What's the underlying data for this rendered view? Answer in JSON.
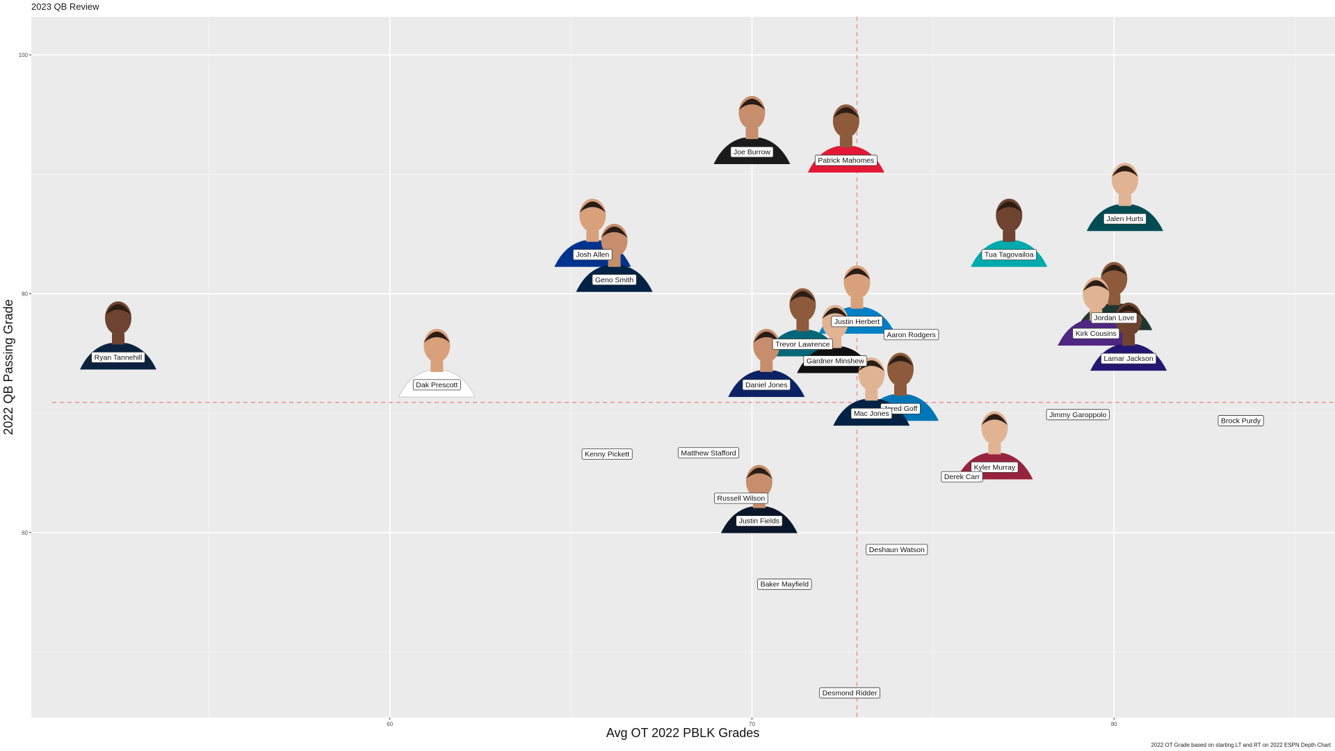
{
  "chart_data": {
    "type": "scatter",
    "title": "2023 QB Review",
    "xlabel": "Avg OT 2022 PBLK Grades",
    "ylabel": "2022 QB Passing Grade",
    "caption": "2022 OT Grade based on starting LT and RT on 2022 ESPN Depth Chart",
    "xlim": [
      50.1,
      86.1
    ],
    "ylim": [
      44.5,
      103.2
    ],
    "x_ticks": [
      60,
      70,
      80
    ],
    "y_ticks": [
      60,
      80,
      100
    ],
    "grid": true,
    "reference_lines": {
      "x_mean": 72.9,
      "y_mean": 70.9,
      "color": "#f08080",
      "style": "dashed"
    },
    "points": [
      {
        "name": "Joe Burrow",
        "x": 70.0,
        "y": 91.9,
        "headshot": true,
        "jersey": "#1b1b1b"
      },
      {
        "name": "Patrick Mahomes",
        "x": 72.6,
        "y": 91.2,
        "headshot": true,
        "jersey": "#e31837"
      },
      {
        "name": "Jalen Hurts",
        "x": 80.3,
        "y": 86.3,
        "headshot": true,
        "jersey": "#004c54"
      },
      {
        "name": "Tua Tagovailoa",
        "x": 77.1,
        "y": 83.3,
        "headshot": true,
        "jersey": "#00aaad"
      },
      {
        "name": "Josh Allen",
        "x": 65.6,
        "y": 83.3,
        "headshot": true,
        "jersey": "#00338d"
      },
      {
        "name": "Geno Smith",
        "x": 66.2,
        "y": 81.2,
        "headshot": true,
        "jersey": "#002244"
      },
      {
        "name": "Jordan Love",
        "x": 80.0,
        "y": 78.0,
        "headshot": true,
        "jersey": "#203731"
      },
      {
        "name": "Kirk Cousins",
        "x": 79.5,
        "y": 76.7,
        "headshot": true,
        "jersey": "#4f2683"
      },
      {
        "name": "Lamar Jackson",
        "x": 80.4,
        "y": 74.6,
        "headshot": true,
        "jersey": "#241773"
      },
      {
        "name": "Justin Herbert",
        "x": 72.9,
        "y": 77.7,
        "headshot": true,
        "jersey": "#0080c6"
      },
      {
        "name": "Aaron Rodgers",
        "x": 74.4,
        "y": 76.6,
        "headshot": false,
        "jersey": ""
      },
      {
        "name": "Trevor Lawrence",
        "x": 71.4,
        "y": 75.8,
        "headshot": true,
        "jersey": "#006778"
      },
      {
        "name": "Gardner Minshew",
        "x": 72.3,
        "y": 74.4,
        "headshot": true,
        "jersey": "#111111"
      },
      {
        "name": "Ryan Tannehill",
        "x": 52.5,
        "y": 74.7,
        "headshot": true,
        "jersey": "#0c2340"
      },
      {
        "name": "Dak Prescott",
        "x": 61.3,
        "y": 72.4,
        "headshot": true,
        "jersey": "#ffffff"
      },
      {
        "name": "Daniel Jones",
        "x": 70.4,
        "y": 72.4,
        "headshot": true,
        "jersey": "#0b2265"
      },
      {
        "name": "Jared Goff",
        "x": 74.1,
        "y": 70.4,
        "headshot": true,
        "jersey": "#0076b6"
      },
      {
        "name": "Mac Jones",
        "x": 73.3,
        "y": 70.0,
        "headshot": true,
        "jersey": "#002244"
      },
      {
        "name": "Jimmy Garoppolo",
        "x": 79.0,
        "y": 69.9,
        "headshot": false,
        "jersey": ""
      },
      {
        "name": "Brock Purdy",
        "x": 83.5,
        "y": 69.4,
        "headshot": false,
        "jersey": ""
      },
      {
        "name": "Kenny Pickett",
        "x": 66.0,
        "y": 66.6,
        "headshot": false,
        "jersey": ""
      },
      {
        "name": "Matthew Stafford",
        "x": 68.8,
        "y": 66.7,
        "headshot": false,
        "jersey": ""
      },
      {
        "name": "Kyler Murray",
        "x": 76.7,
        "y": 65.5,
        "headshot": true,
        "jersey": "#97233f"
      },
      {
        "name": "Derek Carr",
        "x": 75.8,
        "y": 64.7,
        "headshot": false,
        "jersey": ""
      },
      {
        "name": "Russell Wilson",
        "x": 69.7,
        "y": 62.9,
        "headshot": false,
        "jersey": ""
      },
      {
        "name": "Justin Fields",
        "x": 70.2,
        "y": 61.0,
        "headshot": true,
        "jersey": "#0b162a"
      },
      {
        "name": "Deshaun Watson",
        "x": 74.0,
        "y": 58.6,
        "headshot": false,
        "jersey": ""
      },
      {
        "name": "Baker Mayfield",
        "x": 70.9,
        "y": 55.7,
        "headshot": false,
        "jersey": ""
      },
      {
        "name": "Desmond Ridder",
        "x": 72.7,
        "y": 46.6,
        "headshot": false,
        "jersey": ""
      }
    ]
  }
}
